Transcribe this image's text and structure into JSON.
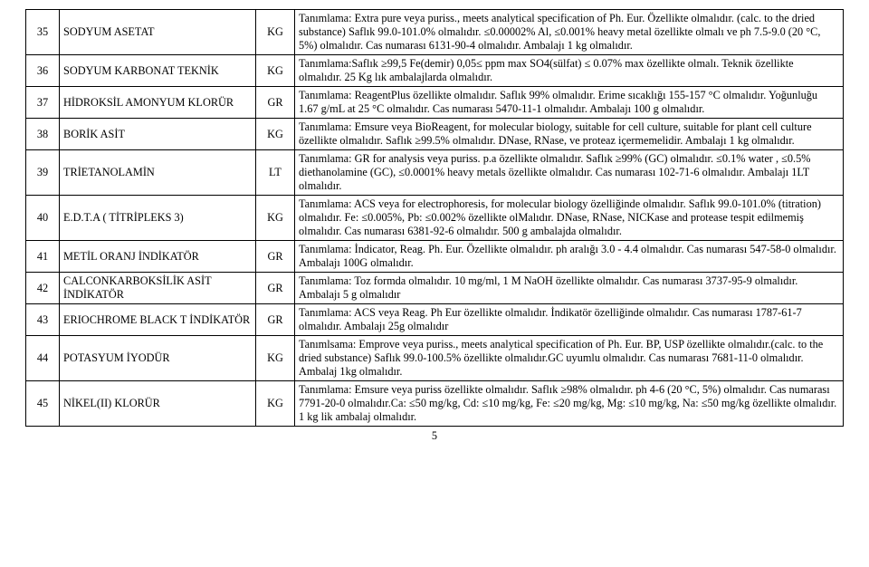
{
  "page_number": "5",
  "rows": [
    {
      "num": "35",
      "name": "SODYUM ASETAT",
      "unit": "KG",
      "desc": "Tanımlama: Extra pure veya puriss., meets analytical specification of Ph. Eur. Özellikte olmalıdır. (calc. to the dried substance) Saflık  99.0-101.0% olmalıdır.  ≤0.00002% Al, ≤0.001% heavy metal özellikte olmalı ve ph 7.5-9.0 (20 °C, 5%) olmalıdır. Cas numarası 6131-90-4 olmalıdır. Ambalajı 1 kg olmalıdır."
    },
    {
      "num": "36",
      "name": "SODYUM KARBONAT TEKNİK",
      "unit": "KG",
      "desc": "Tanımlama:Saflık ≥99,5 Fe(demir) 0,05≤ ppm max SO4(sülfat) ≤ 0.07%  max özellikte  olmalı.  Teknik özellikte olmalıdır.  25 Kg lık ambalajlarda olmalıdır."
    },
    {
      "num": "37",
      "name": "HİDROKSİL AMONYUM KLORÜR",
      "unit": "GR",
      "desc": "Tanımlama: ReagentPlus özellikte olmalıdır. Saflık  99% olmalıdır. Erime sıcaklığı 155-157 °C olmalıdır. Yoğunluğu  1.67 g/mL at 25 °C olmalıdır. Cas numarası 5470-11-1  olmalıdır. Ambalajı  100 g olmalıdır."
    },
    {
      "num": "38",
      "name": "BORİK ASİT",
      "unit": "KG",
      "desc": "Tanımlama: Emsure veya BioReagent, for molecular biology, suitable for cell culture, suitable for plant cell culture özellikte olmalıdır. Saflık  ≥99.5% olmalıdır. DNase, RNase, ve  proteaz içermemelidir. Ambalajı 1 kg olmalıdır."
    },
    {
      "num": "39",
      "name": "TRİETANOLAMİN",
      "unit": "LT",
      "desc": "Tanımlama: GR for analysis veya puriss.  p.a özellikte olmalıdır. Saflık  ≥99% (GC) olmalıdır. ≤0.1% water , ≤0.5% diethanolamine (GC), ≤0.0001% heavy metals özellikte olmalıdır. Cas numarası 102-71-6  olmalıdır. Ambalajı 1LT olmalıdır."
    },
    {
      "num": "40",
      "name": "E.D.T.A ( TİTRİPLEKS 3)",
      "unit": "KG",
      "desc": "Tanımlama: ACS veya for electrophoresis, for molecular biology özelliğinde olmalıdır. Saflık 99.0-101.0% (titration) olmalıdır. Fe: ≤0.005%,  Pb: ≤0.002%  özellikte olMalıdır. DNase, RNase, NICKase and protease tespit edilmemiş olmalıdır. Cas numarası 6381-92-6  olmalıdır. 500 g ambalajda olmalıdır."
    },
    {
      "num": "41",
      "name": "METİL ORANJ İNDİKATÖR",
      "unit": "GR",
      "desc": "Tanımlama: İndicator, Reag. Ph. Eur. Özellikte olmalıdır. ph aralığı 3.0 - 4.4 olmalıdır. Cas numarası 547-58-0  olmalıdır. Ambalajı 100G olmalıdır."
    },
    {
      "num": "42",
      "name": "CALCONKARBOKSİLİK ASİT İNDİKATÖR",
      "unit": "GR",
      "desc": "Tanımlama: Toz formda olmalıdır. 10 mg/ml, 1 M NaOH özellikte olmalıdır. Cas numarası 3737-95-9  olmalıdır.  Ambalajı 5 g olmalıdır"
    },
    {
      "num": "43",
      "name": "ERIOCHROME BLACK T İNDİKATÖR",
      "unit": "GR",
      "desc": "Tanımlama: ACS veya Reag. Ph Eur özellikte olmalıdır. İndikatör özelliğinde olmalıdır.  Cas numarası 1787-61-7  olmalıdır. Ambalajı 25g olmalıdır"
    },
    {
      "num": "44",
      "name": "POTASYUM İYODÜR",
      "unit": "KG",
      "desc": "Tanımlsama: Emprove veya puriss., meets analytical specification of Ph. Eur. BP, USP özellikte olmalıdır.(calc. to the dried substance) Saflık  99.0-100.5% özellikte olmalıdır.GC uyumlu olmalıdır. Cas numarası 7681-11-0  olmalıdır. Ambalaj 1kg olmalıdır."
    },
    {
      "num": "45",
      "name": "NİKEL(II) KLORÜR",
      "unit": "KG",
      "desc": "Tanımlama: Emsure  veya  puriss özellikte olmalıdır. Saflık  ≥98% olmalıdır. ph 4-6 (20 °C, 5%) olmalıdır. Cas numarası 7791-20-0  olmalıdır.Ca: ≤50 mg/kg, Cd: ≤10 mg/kg, Fe: ≤20 mg/kg, Mg: ≤10 mg/kg, Na: ≤50 mg/kg özellikte olmalıdır. 1 kg lik ambalaj olmalıdır."
    }
  ]
}
